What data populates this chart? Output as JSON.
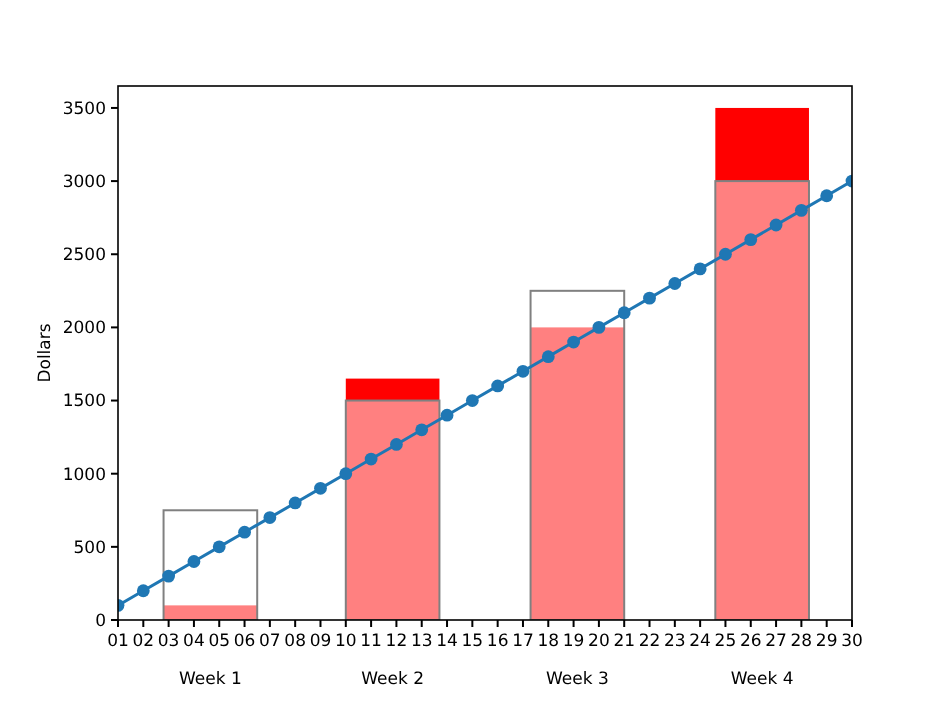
{
  "chart_data": {
    "type": "bar",
    "ylabel": "Dollars",
    "xlim": [
      1,
      30
    ],
    "ylim": [
      0,
      3650
    ],
    "xticks": [
      {
        "value": 1,
        "label": "01"
      },
      {
        "value": 2,
        "label": "02"
      },
      {
        "value": 3,
        "label": "03"
      },
      {
        "value": 4,
        "label": "04"
      },
      {
        "value": 5,
        "label": "05"
      },
      {
        "value": 6,
        "label": "06"
      },
      {
        "value": 7,
        "label": "07"
      },
      {
        "value": 8,
        "label": "08"
      },
      {
        "value": 9,
        "label": "09"
      },
      10,
      11,
      12,
      13,
      14,
      15,
      16,
      17,
      18,
      19,
      20,
      21,
      22,
      23,
      24,
      25,
      26,
      27,
      28,
      29,
      30
    ],
    "yticks": [
      0,
      500,
      1000,
      1500,
      2000,
      2500,
      3000,
      3500
    ],
    "series": [
      {
        "color": "#ff0000",
        "x": [
          4.65,
          11.85,
          19.15,
          26.45
        ],
        "values": [
          100,
          1650,
          2000,
          3500
        ]
      },
      {
        "color": "#ffffff",
        "x": [
          4.65,
          11.85,
          19.15,
          26.45
        ],
        "values": [
          750,
          1500,
          2250,
          3000
        ]
      },
      {
        "type": "line",
        "color": "#1f77b4",
        "marker": "circle",
        "x": [
          1,
          2,
          3,
          4,
          5,
          6,
          7,
          8,
          9,
          10,
          11,
          12,
          13,
          14,
          15,
          16,
          17,
          18,
          19,
          20,
          21,
          22,
          23,
          24,
          25,
          26,
          27,
          28,
          29,
          30
        ],
        "values": [
          100,
          200,
          300,
          400,
          500,
          600,
          700,
          800,
          900,
          1000,
          1100,
          1200,
          1300,
          1400,
          1500,
          1600,
          1700,
          1800,
          1900,
          2000,
          2100,
          2200,
          2300,
          2400,
          2500,
          2600,
          2700,
          2800,
          2900,
          3000
        ]
      }
    ],
    "annotations": [
      "Week 1",
      "Week 2",
      "Week 3",
      "Week 4"
    ],
    "grid": false
  }
}
